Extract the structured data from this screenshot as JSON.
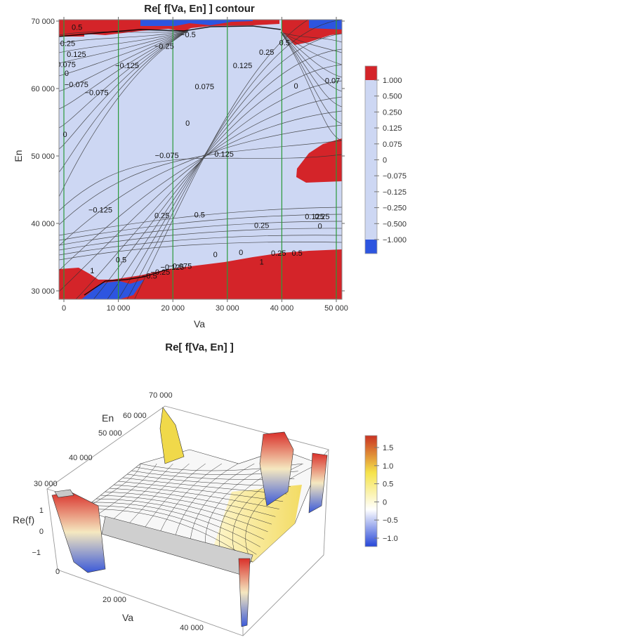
{
  "chart_data": [
    {
      "type": "contour",
      "title": "Re[ f[Va, En] ] contour",
      "xlabel": "Va",
      "ylabel": "En",
      "xlim": [
        0,
        50000
      ],
      "ylim": [
        29000,
        70000
      ],
      "x_ticks": [
        0,
        10000,
        20000,
        30000,
        40000,
        50000
      ],
      "x_tick_labels": [
        "0",
        "10 000",
        "20 000",
        "30 000",
        "40 000",
        "50 000"
      ],
      "y_ticks": [
        30000,
        40000,
        50000,
        60000,
        70000
      ],
      "y_tick_labels": [
        "30 000",
        "40 000",
        "50 000",
        "60 000",
        "70 000"
      ],
      "vertical_lines_x": [
        0,
        10000,
        20000,
        30000,
        40000,
        50000
      ],
      "contour_levels": [
        -1.0,
        -0.5,
        -0.25,
        -0.125,
        -0.075,
        0,
        0.075,
        0.125,
        0.25,
        0.5,
        1.0
      ],
      "legend": {
        "position": "right",
        "labels": [
          "1.000",
          "0.500",
          "0.250",
          "0.125",
          "0.075",
          "0",
          "−0.075",
          "−0.125",
          "−0.250",
          "−0.500",
          "−1.000"
        ],
        "colors": {
          "high": "#d42429",
          "mid": "#cdd7f3",
          "low": "#2d55e0"
        }
      },
      "contour_labels": [
        {
          "text": "0.5",
          "x": 2400,
          "y": 68700
        },
        {
          "text": "0.25",
          "x": 700,
          "y": 66300
        },
        {
          "text": "0.125",
          "x": 2300,
          "y": 64700
        },
        {
          "text": "0.075",
          "x": 400,
          "y": 63200
        },
        {
          "text": "0",
          "x": 500,
          "y": 61900
        },
        {
          "text": "−0.075",
          "x": 2300,
          "y": 60200
        },
        {
          "text": "−0.075",
          "x": 6000,
          "y": 59000
        },
        {
          "text": "−0.125",
          "x": 11600,
          "y": 63000
        },
        {
          "text": "−0.25",
          "x": 18400,
          "y": 65900
        },
        {
          "text": "−0.5",
          "x": 22800,
          "y": 67600
        },
        {
          "text": "0.075",
          "x": 25800,
          "y": 59900
        },
        {
          "text": "0.125",
          "x": 32800,
          "y": 63000
        },
        {
          "text": "0.25",
          "x": 37200,
          "y": 65000
        },
        {
          "text": "0.5",
          "x": 40500,
          "y": 66400
        },
        {
          "text": "0",
          "x": 42600,
          "y": 60000
        },
        {
          "text": "0.07",
          "x": 49300,
          "y": 60800
        },
        {
          "text": "0",
          "x": 22700,
          "y": 54500
        },
        {
          "text": "0",
          "x": 200,
          "y": 52800
        },
        {
          "text": "−0.075",
          "x": 18900,
          "y": 49700
        },
        {
          "text": "0.125",
          "x": 29400,
          "y": 49900
        },
        {
          "text": "−0.125",
          "x": 6700,
          "y": 41600
        },
        {
          "text": "0.25",
          "x": 18000,
          "y": 40800
        },
        {
          "text": "0.5",
          "x": 24900,
          "y": 40900
        },
        {
          "text": "0.25",
          "x": 36300,
          "y": 39300
        },
        {
          "text": "0.5",
          "x": 10500,
          "y": 34200
        },
        {
          "text": "1",
          "x": 5200,
          "y": 32600
        },
        {
          "text": "0",
          "x": 27800,
          "y": 35000
        },
        {
          "text": "0",
          "x": 32500,
          "y": 35300
        },
        {
          "text": "0.25",
          "x": 39400,
          "y": 35200
        },
        {
          "text": "0.5",
          "x": 42800,
          "y": 35200
        },
        {
          "text": "1",
          "x": 36300,
          "y": 33900
        },
        {
          "text": "−0.075",
          "x": 21300,
          "y": 33300
        },
        {
          "text": "−0.125",
          "x": 19900,
          "y": 33100
        },
        {
          "text": "−0.25",
          "x": 17700,
          "y": 32400
        },
        {
          "text": "−0.5",
          "x": 15700,
          "y": 31800
        },
        {
          "text": "0.125",
          "x": 46000,
          "y": 40600
        },
        {
          "text": "0.25",
          "x": 47400,
          "y": 40600
        },
        {
          "text": "0",
          "x": 47000,
          "y": 39200
        }
      ]
    },
    {
      "type": "surface3d",
      "title": "Re[ f[Va, En] ]",
      "xlabel": "Va",
      "ylabel": "En",
      "zlabel": "Re(f)",
      "x_tick_labels": [
        "20 000",
        "40 000"
      ],
      "y_tick_labels": [
        "30 000",
        "40 000",
        "50 000",
        "60 000",
        "70 000"
      ],
      "z_tick_labels": [
        "1",
        "0",
        "−1"
      ],
      "origin_label": "0",
      "legend": {
        "position": "right",
        "labels": [
          "1.5",
          "1.0",
          "0.5",
          "0",
          "−0.5",
          "−1.0"
        ],
        "colorscale": [
          "#2646d8",
          "#ffffff",
          "#f5e34a",
          "#c93222"
        ]
      }
    }
  ]
}
